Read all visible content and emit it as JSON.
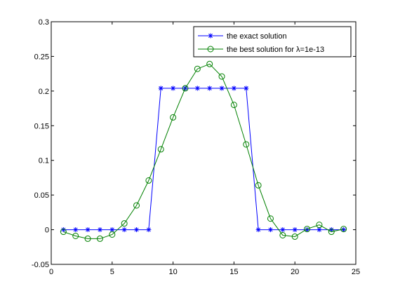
{
  "chart_data": {
    "type": "line",
    "title": "",
    "xlabel": "",
    "ylabel": "",
    "xlim": [
      0,
      25
    ],
    "ylim": [
      -0.05,
      0.3
    ],
    "xticks": [
      0,
      5,
      10,
      15,
      20,
      25
    ],
    "yticks": [
      -0.05,
      0,
      0.05,
      0.1,
      0.15,
      0.2,
      0.25,
      0.3
    ],
    "xtick_labels": [
      "0",
      "5",
      "10",
      "15",
      "20",
      "25"
    ],
    "ytick_labels": [
      "-0.05",
      "0",
      "0.05",
      "0.1",
      "0.15",
      "0.2",
      "0.25",
      "0.3"
    ],
    "grid": false,
    "legend_position": "top-right",
    "x": [
      1,
      2,
      3,
      4,
      5,
      6,
      7,
      8,
      9,
      10,
      11,
      12,
      13,
      14,
      15,
      16,
      17,
      18,
      19,
      20,
      21,
      22,
      23,
      24
    ],
    "series": [
      {
        "name": "the exact solution",
        "color": "#0000ff",
        "marker": "asterisk",
        "values": [
          0,
          0,
          0,
          0,
          0,
          0,
          0,
          0,
          0.204,
          0.204,
          0.204,
          0.204,
          0.204,
          0.204,
          0.204,
          0.204,
          0,
          0,
          0,
          0,
          0,
          0,
          0,
          0
        ]
      },
      {
        "name": "the best solution for λ=1e-13",
        "color": "#008000",
        "marker": "circle",
        "values": [
          -0.003,
          -0.009,
          -0.013,
          -0.013,
          -0.007,
          0.009,
          0.035,
          0.071,
          0.116,
          0.162,
          0.204,
          0.232,
          0.239,
          0.221,
          0.18,
          0.123,
          0.064,
          0.016,
          -0.008,
          -0.01,
          0.001,
          0.007,
          -0.003,
          0.001
        ]
      }
    ]
  }
}
